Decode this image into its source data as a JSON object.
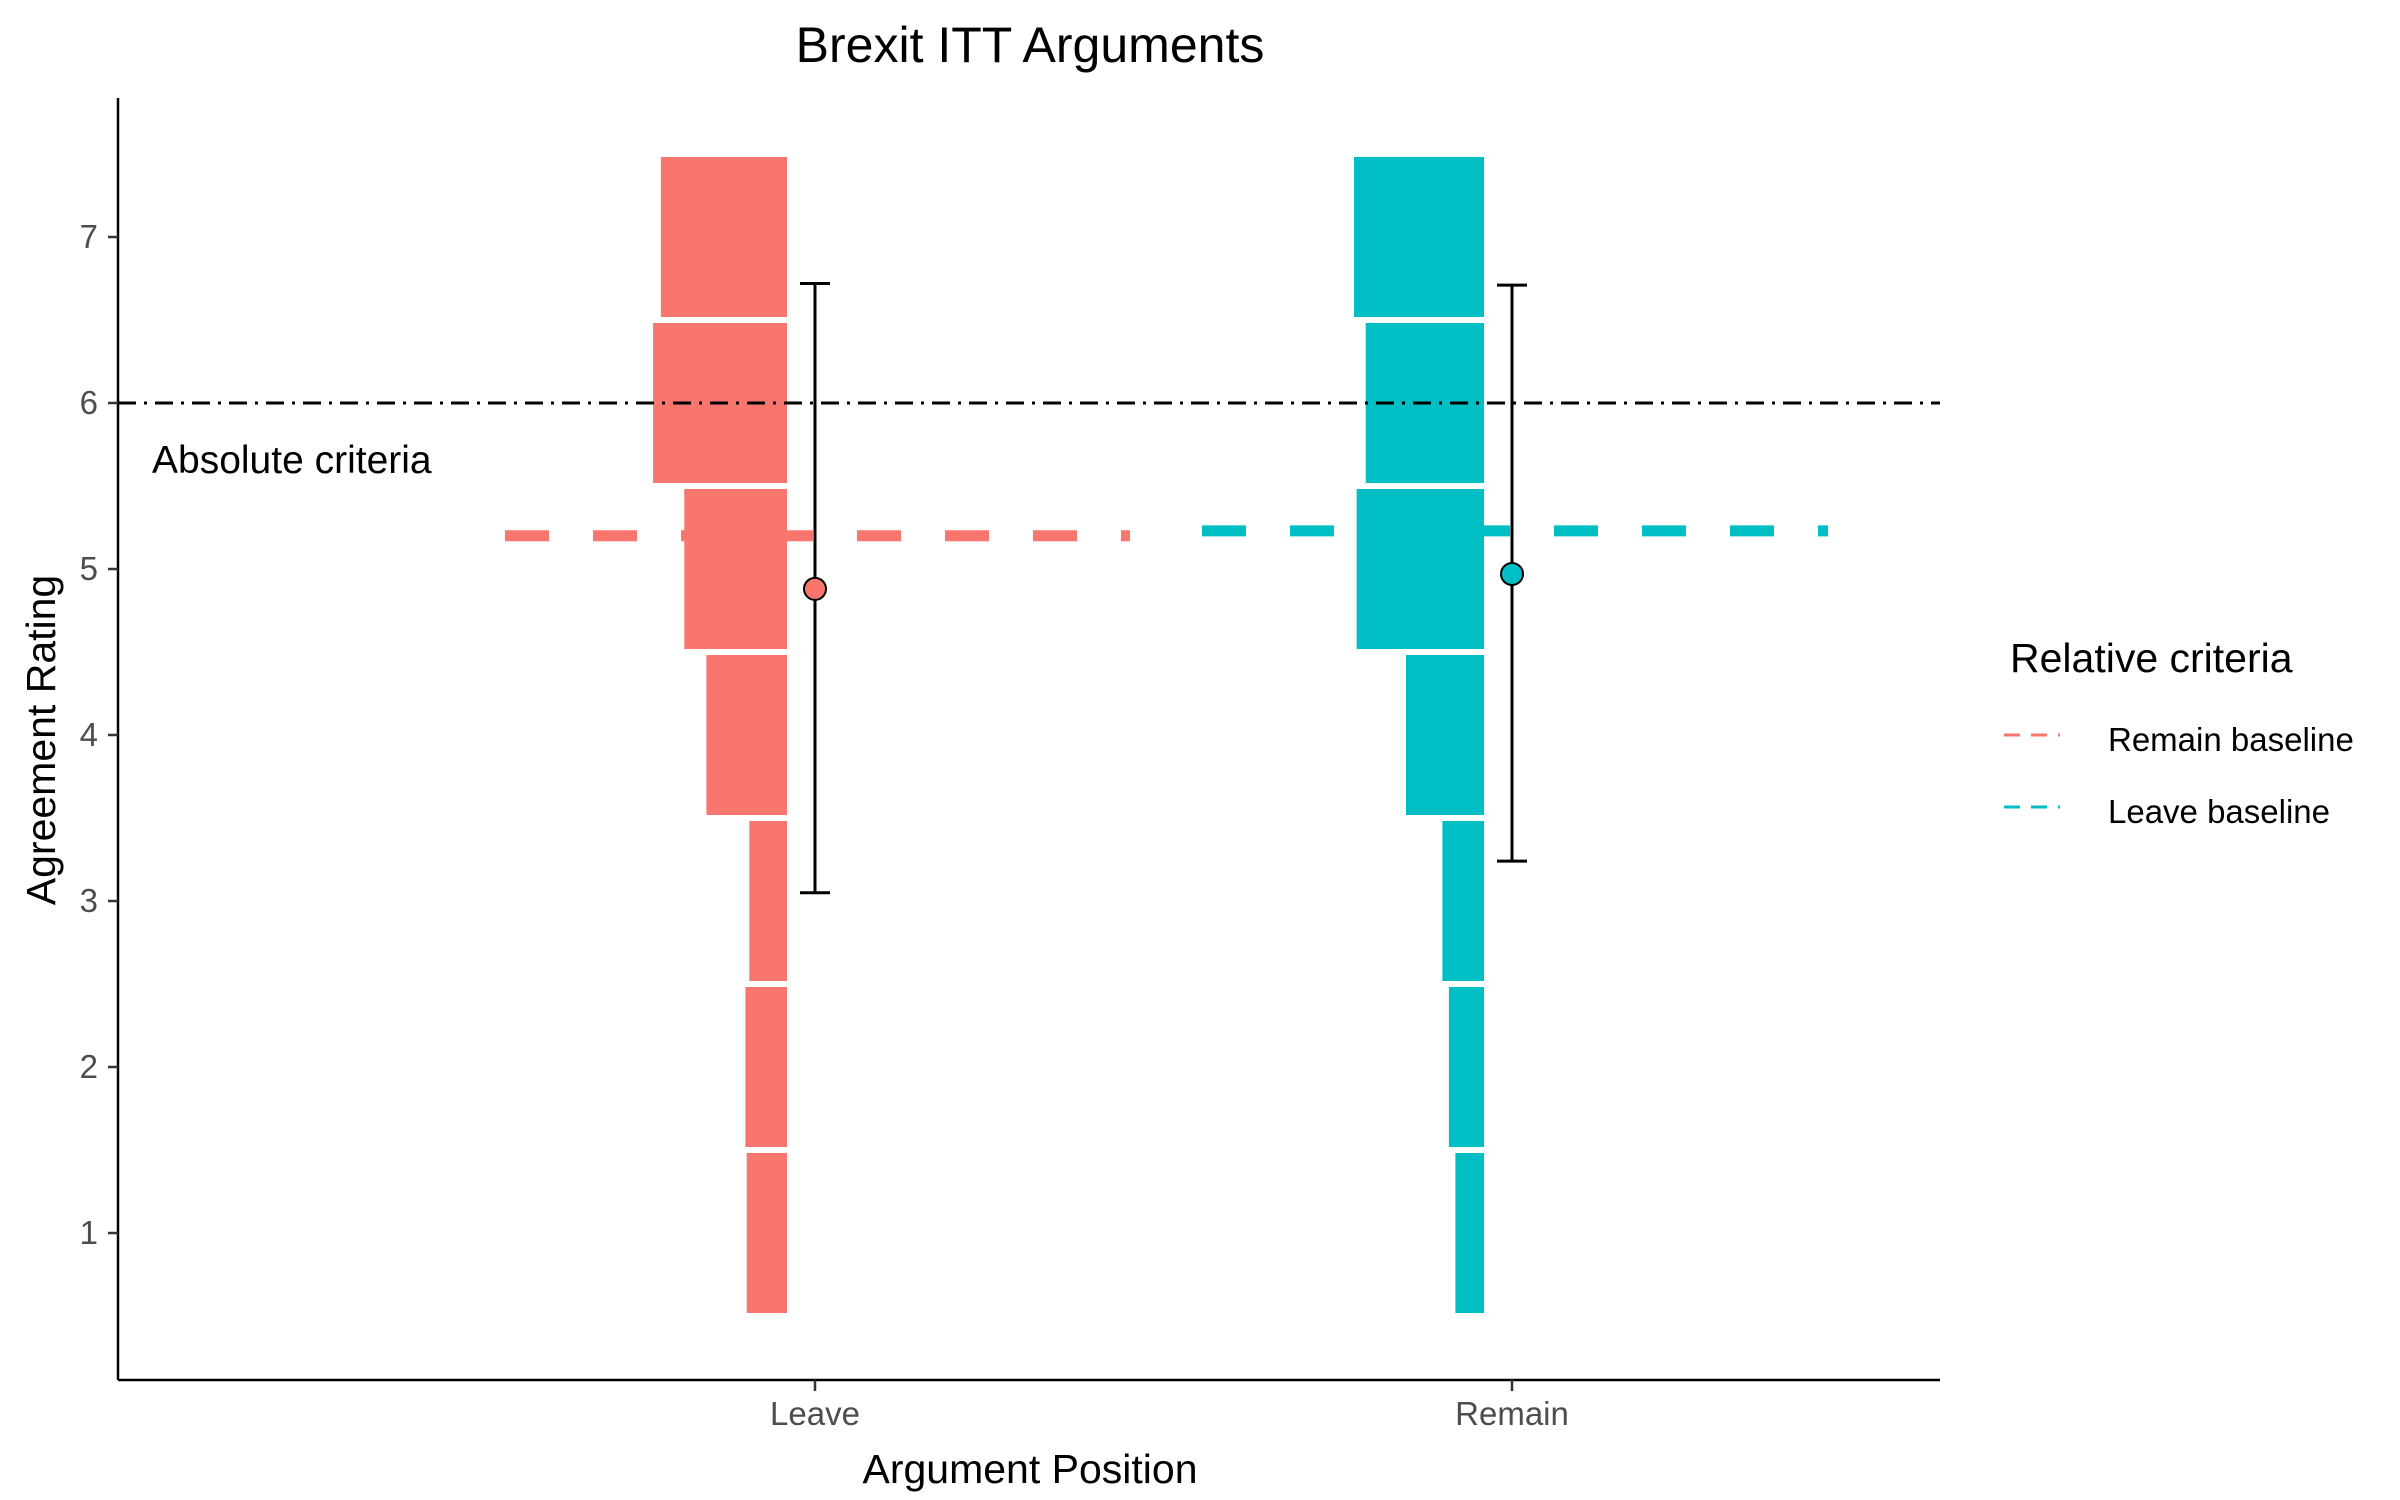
{
  "chart_data": {
    "type": "bar",
    "title": "Brexit ITT Arguments",
    "xlabel": "Argument Position",
    "ylabel": "Agreement Rating",
    "categories": [
      "Leave",
      "Remain"
    ],
    "y_ticks": [
      "1",
      "2",
      "3",
      "4",
      "5",
      "6",
      "7"
    ],
    "ylim": [
      0.2,
      7.85
    ],
    "grid": false,
    "distribution_levels": [
      1,
      2,
      3,
      4,
      5,
      6,
      7
    ],
    "series": [
      {
        "category": "Leave",
        "color": "#F8766D",
        "relative_width": [
          0.31,
          0.32,
          0.29,
          0.62,
          0.79,
          1.03,
          0.97
        ],
        "mean": 4.88,
        "error_low": 3.05,
        "error_high": 6.72,
        "baseline": 5.2
      },
      {
        "category": "Remain",
        "color": "#00BFC4",
        "relative_width": [
          0.22,
          0.27,
          0.32,
          0.6,
          0.98,
          0.91,
          1.0
        ],
        "mean": 4.97,
        "error_low": 3.24,
        "error_high": 6.71,
        "baseline": 5.23
      }
    ],
    "absolute_criteria": {
      "value": 6,
      "label": "Absolute criteria",
      "line_style": "dotdash"
    },
    "legend": {
      "title": "Relative criteria",
      "placement": "right",
      "entries": [
        {
          "label": "Remain baseline",
          "color": "#F8766D",
          "line_style": "dashed"
        },
        {
          "label": "Leave baseline",
          "color": "#00BFC4",
          "line_style": "dashed"
        }
      ]
    }
  }
}
